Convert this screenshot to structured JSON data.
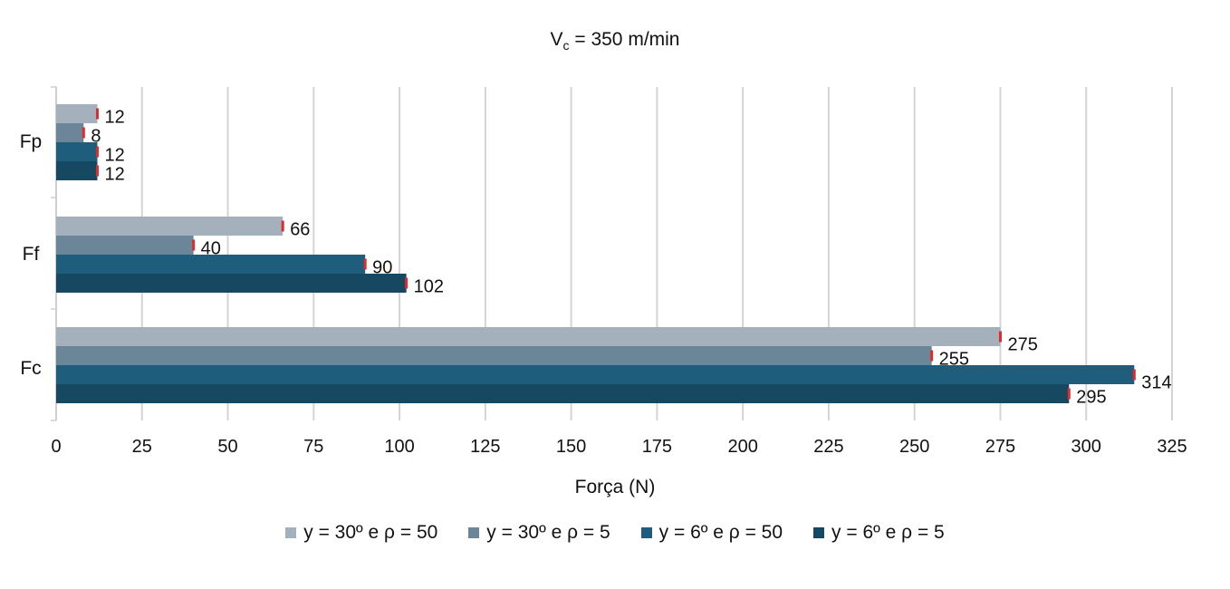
{
  "chart_data": {
    "type": "bar",
    "orientation": "horizontal",
    "title_main": "V",
    "title_sub": "c",
    "title_rest": " = 350 m/min",
    "xlabel": "Força (N)",
    "ylabel": "",
    "xlim": [
      0,
      325
    ],
    "xticks": [
      "0",
      "25",
      "50",
      "75",
      "100",
      "125",
      "150",
      "175",
      "200",
      "225",
      "250",
      "275",
      "300",
      "325"
    ],
    "categories": [
      "Fp",
      "Ff",
      "Fc"
    ],
    "grid": "vertical",
    "legend_position": "bottom",
    "series": [
      {
        "name": "y = 30º e ρ = 50",
        "color": "#a4b0bc",
        "values": [
          12,
          66,
          275
        ],
        "labels": [
          "12",
          "66",
          "275"
        ]
      },
      {
        "name": "y = 30º e ρ = 5",
        "color": "#6b8599",
        "values": [
          8,
          40,
          255
        ],
        "labels": [
          "8",
          "40",
          "255"
        ]
      },
      {
        "name": "y = 6º e ρ = 50",
        "color": "#1e5d7c",
        "values": [
          12,
          90,
          314
        ],
        "labels": [
          "12",
          "90",
          "314"
        ]
      },
      {
        "name": "y = 6º e ρ = 5",
        "color": "#174861",
        "values": [
          12,
          102,
          295
        ],
        "labels": [
          "12",
          "102",
          "295"
        ]
      }
    ],
    "error_bar_color": "#e02b2b"
  }
}
